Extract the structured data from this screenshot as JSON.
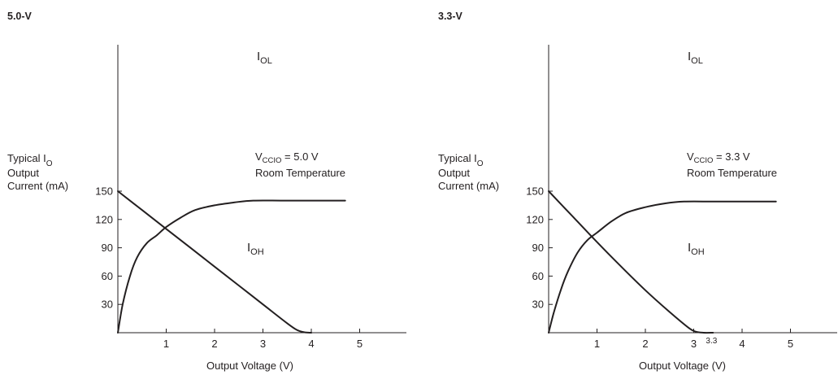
{
  "chart_data": [
    {
      "type": "line",
      "title": "5.0-V",
      "ylabel": {
        "prefix": "Typical I",
        "sub": "O",
        "lines": [
          "Output",
          "Current (mA)"
        ]
      },
      "xlabel": "Output Voltage (V)",
      "x_ticks": [
        1,
        2,
        3,
        4,
        5
      ],
      "y_ticks": [
        30,
        60,
        90,
        120,
        150
      ],
      "xlim": [
        0,
        6
      ],
      "ylim": [
        0,
        150
      ],
      "extra_x_label": null,
      "annotation": {
        "v": "V",
        "sub": "CCIO",
        "value": " = 5.0 V",
        "line2": "Room Temperature"
      },
      "series": [
        {
          "name": "I",
          "name_sub": "OL",
          "points": [
            [
              0,
              0
            ],
            [
              0.1,
              30
            ],
            [
              0.25,
              60
            ],
            [
              0.4,
              80
            ],
            [
              0.6,
              95
            ],
            [
              0.8,
              103
            ],
            [
              1.0,
              112
            ],
            [
              1.3,
              122
            ],
            [
              1.6,
              130
            ],
            [
              2.0,
              135
            ],
            [
              2.4,
              138
            ],
            [
              2.8,
              140
            ],
            [
              3.5,
              140
            ],
            [
              4.7,
              140
            ]
          ]
        },
        {
          "name": "I",
          "name_sub": "OH",
          "points": [
            [
              0,
              150
            ],
            [
              0.5,
              130
            ],
            [
              1.0,
              110
            ],
            [
              1.5,
              90
            ],
            [
              2.0,
              70
            ],
            [
              2.5,
              50
            ],
            [
              3.0,
              30
            ],
            [
              3.5,
              10
            ],
            [
              3.7,
              3
            ],
            [
              3.85,
              0.5
            ],
            [
              4.0,
              0
            ]
          ]
        }
      ]
    },
    {
      "type": "line",
      "title": "3.3-V",
      "ylabel": {
        "prefix": "Typical I",
        "sub": "O",
        "lines": [
          "Output",
          "Current (mA)"
        ]
      },
      "xlabel": "Output Voltage (V)",
      "x_ticks": [
        1,
        2,
        3,
        4,
        5
      ],
      "y_ticks": [
        30,
        60,
        90,
        120,
        150
      ],
      "xlim": [
        0,
        6
      ],
      "ylim": [
        0,
        150
      ],
      "extra_x_label": {
        "text": "3.3",
        "x": 3.3
      },
      "annotation": {
        "v": "V",
        "sub": "CCIO",
        "value": " = 3.3 V",
        "line2": "Room Temperature"
      },
      "series": [
        {
          "name": "I",
          "name_sub": "OL",
          "points": [
            [
              0,
              0
            ],
            [
              0.1,
              20
            ],
            [
              0.25,
              45
            ],
            [
              0.4,
              65
            ],
            [
              0.6,
              85
            ],
            [
              0.8,
              98
            ],
            [
              1.0,
              106
            ],
            [
              1.3,
              118
            ],
            [
              1.6,
              127
            ],
            [
              2.0,
              133
            ],
            [
              2.4,
              137
            ],
            [
              2.8,
              139
            ],
            [
              3.5,
              139
            ],
            [
              4.7,
              139
            ]
          ]
        },
        {
          "name": "I",
          "name_sub": "OH",
          "points": [
            [
              0,
              150
            ],
            [
              0.5,
              123
            ],
            [
              1.0,
              96
            ],
            [
              1.5,
              70
            ],
            [
              2.0,
              45
            ],
            [
              2.5,
              22
            ],
            [
              2.9,
              5
            ],
            [
              3.05,
              1
            ],
            [
              3.2,
              0
            ],
            [
              3.4,
              0
            ]
          ]
        }
      ]
    }
  ]
}
